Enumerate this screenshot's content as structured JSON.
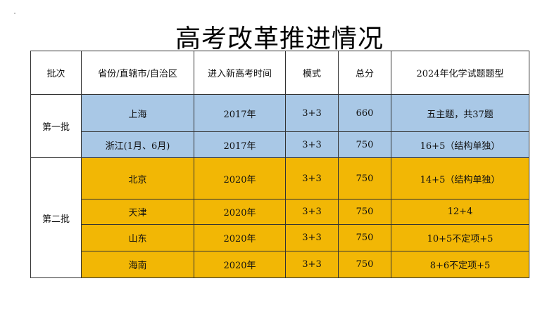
{
  "title": "高考改革推进情况",
  "headers": [
    "批次",
    "省份/直辖市/自治区",
    "进入新高考时间",
    "模式",
    "总分",
    "2024年化学试题题型"
  ],
  "batches": [
    {
      "name": "第一批",
      "color": "#a9c8e6",
      "rows": [
        {
          "province": "上海",
          "year": "2017年",
          "mode": "3+3",
          "total": "660",
          "type": "五主题，共37题"
        },
        {
          "province": "浙江(1月、6月)",
          "year": "2017年",
          "mode": "3+3",
          "total": "750",
          "type": "16+5（结构单独）"
        }
      ]
    },
    {
      "name": "第二批",
      "color": "#f2b705",
      "rows": [
        {
          "province": "北京",
          "year": "2020年",
          "mode": "3+3",
          "total": "750",
          "type": "14+5（结构单独）"
        },
        {
          "province": "天津",
          "year": "2020年",
          "mode": "3+3",
          "total": "750",
          "type": "12+4"
        },
        {
          "province": "山东",
          "year": "2020年",
          "mode": "3+3",
          "total": "750",
          "type": "10+5不定项+5"
        },
        {
          "province": "海南",
          "year": "2020年",
          "mode": "3+3",
          "total": "750",
          "type": "8+6不定项+5"
        }
      ]
    }
  ]
}
